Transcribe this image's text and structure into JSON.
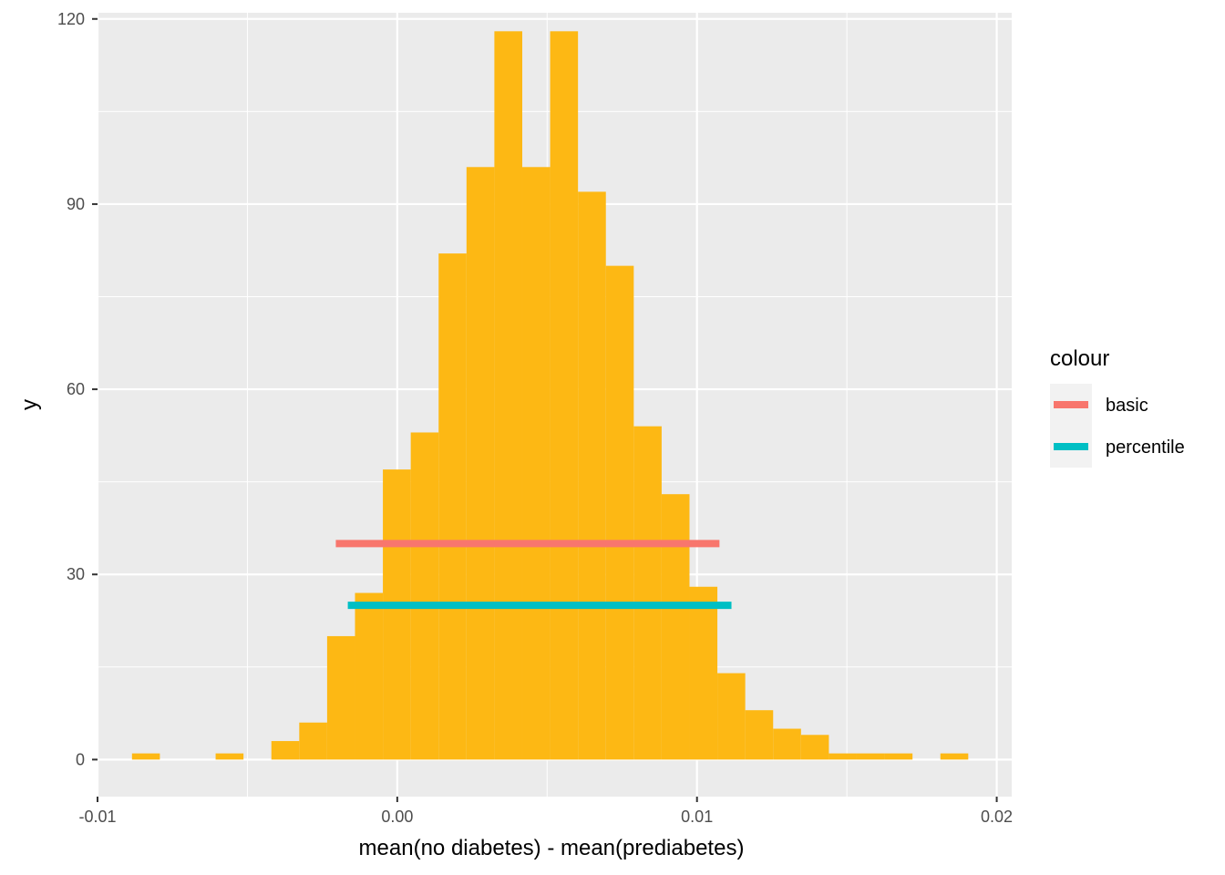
{
  "chart_data": {
    "type": "bar",
    "xlabel": "mean(no diabetes) - mean(prediabetes)",
    "ylabel": "y",
    "xlim": [
      -0.01,
      0.0205
    ],
    "ylim": [
      -6,
      121
    ],
    "x_ticks": [
      {
        "value": -0.01,
        "label": "-0.01"
      },
      {
        "value": 0.0,
        "label": "0.00"
      },
      {
        "value": 0.01,
        "label": "0.01"
      },
      {
        "value": 0.02,
        "label": "0.02"
      }
    ],
    "y_ticks": [
      {
        "value": 0,
        "label": "0"
      },
      {
        "value": 30,
        "label": "30"
      },
      {
        "value": 60,
        "label": "60"
      },
      {
        "value": 90,
        "label": "90"
      },
      {
        "value": 120,
        "label": "120"
      }
    ],
    "grid": true,
    "bar_color": "#FDB814",
    "bins": [
      {
        "x0": -0.00885,
        "x1": -0.00792,
        "count": 1
      },
      {
        "x0": -0.00792,
        "x1": -0.00699,
        "count": 0
      },
      {
        "x0": -0.00699,
        "x1": -0.00606,
        "count": 0
      },
      {
        "x0": -0.00606,
        "x1": -0.00513,
        "count": 1
      },
      {
        "x0": -0.00513,
        "x1": -0.0042,
        "count": 0
      },
      {
        "x0": -0.0042,
        "x1": -0.00327,
        "count": 3
      },
      {
        "x0": -0.00327,
        "x1": -0.00234,
        "count": 6
      },
      {
        "x0": -0.00234,
        "x1": -0.00141,
        "count": 20
      },
      {
        "x0": -0.00141,
        "x1": -0.00048,
        "count": 27
      },
      {
        "x0": -0.00048,
        "x1": 0.00045,
        "count": 47
      },
      {
        "x0": 0.00045,
        "x1": 0.00138,
        "count": 53
      },
      {
        "x0": 0.00138,
        "x1": 0.00231,
        "count": 82
      },
      {
        "x0": 0.00231,
        "x1": 0.00324,
        "count": 96
      },
      {
        "x0": 0.00324,
        "x1": 0.00417,
        "count": 118
      },
      {
        "x0": 0.00417,
        "x1": 0.0051,
        "count": 96
      },
      {
        "x0": 0.0051,
        "x1": 0.00603,
        "count": 118
      },
      {
        "x0": 0.00603,
        "x1": 0.00696,
        "count": 92
      },
      {
        "x0": 0.00696,
        "x1": 0.00789,
        "count": 80
      },
      {
        "x0": 0.00789,
        "x1": 0.00882,
        "count": 54
      },
      {
        "x0": 0.00882,
        "x1": 0.00975,
        "count": 43
      },
      {
        "x0": 0.00975,
        "x1": 0.01068,
        "count": 28
      },
      {
        "x0": 0.01068,
        "x1": 0.01161,
        "count": 14
      },
      {
        "x0": 0.01161,
        "x1": 0.01254,
        "count": 8
      },
      {
        "x0": 0.01254,
        "x1": 0.01347,
        "count": 5
      },
      {
        "x0": 0.01347,
        "x1": 0.0144,
        "count": 4
      },
      {
        "x0": 0.0144,
        "x1": 0.01533,
        "count": 1
      },
      {
        "x0": 0.01533,
        "x1": 0.01626,
        "count": 1
      },
      {
        "x0": 0.01626,
        "x1": 0.01719,
        "count": 1
      },
      {
        "x0": 0.01719,
        "x1": 0.01812,
        "count": 0
      },
      {
        "x0": 0.01812,
        "x1": 0.01905,
        "count": 1
      }
    ],
    "segments": [
      {
        "name": "basic",
        "color": "#F8766D",
        "x0": -0.00205,
        "x1": 0.01075,
        "y": 35
      },
      {
        "name": "percentile",
        "color": "#00BFC4",
        "x0": -0.00165,
        "x1": 0.01115,
        "y": 25
      }
    ],
    "legend": {
      "title": "colour",
      "position": "right",
      "items": [
        {
          "label": "basic",
          "color": "#F8766D"
        },
        {
          "label": "percentile",
          "color": "#00BFC4"
        }
      ]
    }
  }
}
